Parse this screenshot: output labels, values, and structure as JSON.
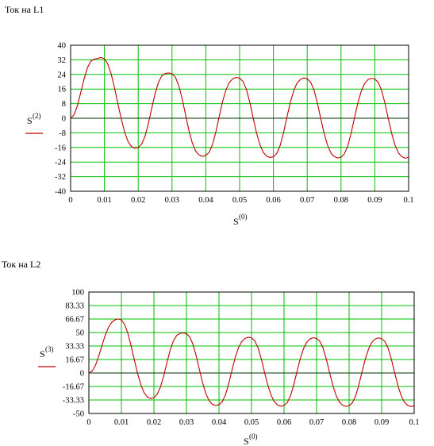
{
  "colors": {
    "grid": "#00c000",
    "series": "#c00000",
    "frame": "#000000"
  },
  "chart_data": [
    {
      "type": "line",
      "title": "Ток на L1",
      "xlabel": "S",
      "xlabel_sup": "(0)",
      "ylabel": "S",
      "ylabel_sup": "(2)",
      "xlim": [
        0,
        0.1
      ],
      "ylim": [
        -40,
        40
      ],
      "grid": true,
      "xticks": [
        "0",
        "0.01",
        "0.02",
        "0.03",
        "0.04",
        "0.05",
        "0.06",
        "0.07",
        "0.08",
        "0.09",
        "0.1"
      ],
      "yticks": [
        "40",
        "32",
        "24",
        "16",
        "8",
        "0",
        "-8",
        "-16",
        "-24",
        "-32",
        "-40"
      ],
      "series": [
        {
          "x": [
            0,
            0.001,
            0.002,
            0.003,
            0.004,
            0.005,
            0.006,
            0.007,
            0.008,
            0.009,
            0.01,
            0.011,
            0.012,
            0.013,
            0.014,
            0.015,
            0.016,
            0.017,
            0.018,
            0.019,
            0.02,
            0.021,
            0.022,
            0.023,
            0.024,
            0.025,
            0.026,
            0.027,
            0.028,
            0.029,
            0.03,
            0.031,
            0.032,
            0.033,
            0.034,
            0.035,
            0.036,
            0.037,
            0.038,
            0.039,
            0.04,
            0.041,
            0.042,
            0.043,
            0.044,
            0.045,
            0.046,
            0.047,
            0.048,
            0.049,
            0.05,
            0.051,
            0.052,
            0.053,
            0.054,
            0.055,
            0.056,
            0.057,
            0.058,
            0.059,
            0.06,
            0.061,
            0.062,
            0.063,
            0.064,
            0.065,
            0.066,
            0.067,
            0.068,
            0.069,
            0.07,
            0.071,
            0.072,
            0.073,
            0.074,
            0.075,
            0.076,
            0.077,
            0.078,
            0.079,
            0.08,
            0.081,
            0.082,
            0.083,
            0.084,
            0.085,
            0.086,
            0.087,
            0.088,
            0.089,
            0.09,
            0.091,
            0.092,
            0.093,
            0.094,
            0.095,
            0.096,
            0.097,
            0.098,
            0.099,
            0.1
          ],
          "values": [
            0,
            1.8,
            6.8,
            14.1,
            21.6,
            27.8,
            31.3,
            32.4,
            32.8,
            33.3,
            32.6,
            29.7,
            24.3,
            16.5,
            7.9,
            -0.5,
            -7.7,
            -12.8,
            -15.5,
            -16.4,
            -16,
            -14.2,
            -10,
            -3,
            5.5,
            13.5,
            19.7,
            23.3,
            24.5,
            24.8,
            24.4,
            22.5,
            17.9,
            10.7,
            1.9,
            -6.7,
            -13.5,
            -18,
            -20.1,
            -20.9,
            -20.4,
            -18.6,
            -14.3,
            -7.3,
            1.3,
            9.4,
            15.7,
            19.7,
            21.7,
            22.4,
            22,
            20.2,
            15.9,
            8.8,
            0.2,
            -8,
            -14.5,
            -18.7,
            -20.8,
            -21.5,
            -21.1,
            -19.3,
            -14.9,
            -7.9,
            0.6,
            8.7,
            15.1,
            19.3,
            21.3,
            22.1,
            21.6,
            19.8,
            15.5,
            8.4,
            -0.1,
            -8.3,
            -14.7,
            -19,
            -21,
            -21.8,
            -21.4,
            -19.5,
            -15.2,
            -8.1,
            0.4,
            8.5,
            14.9,
            19.1,
            21.2,
            21.9,
            21.5,
            19.7,
            15.3,
            8.3,
            -0.3,
            -8.4,
            -14.8,
            -19,
            -21.1,
            -21.9,
            -21.4
          ]
        }
      ]
    },
    {
      "type": "line",
      "title": "Ток на L2",
      "xlabel": "S",
      "xlabel_sup": "(0)",
      "ylabel": "S",
      "ylabel_sup": "(3)",
      "xlim": [
        0,
        0.1
      ],
      "ylim": [
        -50,
        100
      ],
      "grid": true,
      "xticks": [
        "0",
        "0.01",
        "0.02",
        "0.03",
        "0.04",
        "0.05",
        "0.06",
        "0.07",
        "0.08",
        "0.09",
        "0.1"
      ],
      "yticks": [
        "100",
        "83.33",
        "66.67",
        "50",
        "33.33",
        "16.67",
        "0",
        "-16.67",
        "-33.33",
        "-50"
      ],
      "series": [
        {
          "x": [
            0,
            0.001,
            0.002,
            0.003,
            0.004,
            0.005,
            0.006,
            0.007,
            0.008,
            0.009,
            0.01,
            0.011,
            0.012,
            0.013,
            0.014,
            0.015,
            0.016,
            0.017,
            0.018,
            0.019,
            0.02,
            0.021,
            0.022,
            0.023,
            0.024,
            0.025,
            0.026,
            0.027,
            0.028,
            0.029,
            0.03,
            0.031,
            0.032,
            0.033,
            0.034,
            0.035,
            0.036,
            0.037,
            0.038,
            0.039,
            0.04,
            0.041,
            0.042,
            0.043,
            0.044,
            0.045,
            0.046,
            0.047,
            0.048,
            0.049,
            0.05,
            0.051,
            0.052,
            0.053,
            0.054,
            0.055,
            0.056,
            0.057,
            0.058,
            0.059,
            0.06,
            0.061,
            0.062,
            0.063,
            0.064,
            0.065,
            0.066,
            0.067,
            0.068,
            0.069,
            0.07,
            0.071,
            0.072,
            0.073,
            0.074,
            0.075,
            0.076,
            0.077,
            0.078,
            0.079,
            0.08,
            0.081,
            0.082,
            0.083,
            0.084,
            0.085,
            0.086,
            0.087,
            0.088,
            0.089,
            0.09,
            0.091,
            0.092,
            0.093,
            0.094,
            0.095,
            0.096,
            0.097,
            0.098,
            0.099,
            0.1
          ],
          "values": [
            0,
            2.3,
            9.2,
            20.3,
            33.5,
            46.2,
            56.2,
            62.5,
            65.5,
            66.8,
            65.6,
            59.9,
            48.8,
            33.2,
            15.8,
            -0.9,
            -14.9,
            -24.6,
            -29.8,
            -31.6,
            -30.5,
            -26.3,
            -17.5,
            -3.7,
            12.9,
            28.3,
            39.8,
            46.4,
            48.8,
            49.5,
            48.6,
            44.6,
            35.4,
            21.1,
            4,
            -12.6,
            -25.8,
            -34.4,
            -38.7,
            -40.2,
            -39.3,
            -35.5,
            -26.9,
            -13.2,
            3.5,
            19.2,
            31.3,
            38.9,
            42.8,
            44.2,
            43.4,
            39.7,
            31.3,
            17.6,
            1,
            -14.8,
            -27.3,
            -35.4,
            -39.5,
            -41,
            -40.2,
            -36.5,
            -28.1,
            -14.5,
            2.1,
            17.8,
            30.2,
            38.2,
            42.1,
            43.6,
            42.7,
            39.1,
            30.7,
            17.1,
            0.5,
            -15.3,
            -27.7,
            -35.8,
            -39.8,
            -41.3,
            -40.5,
            -36.8,
            -28.4,
            -14.8,
            1.8,
            17.5,
            29.9,
            37.9,
            41.9,
            43.4,
            42.5,
            38.9,
            30.5,
            16.9,
            0.3,
            -15.5,
            -27.9,
            -36,
            -40,
            -41.5,
            -40.6
          ]
        }
      ]
    }
  ]
}
